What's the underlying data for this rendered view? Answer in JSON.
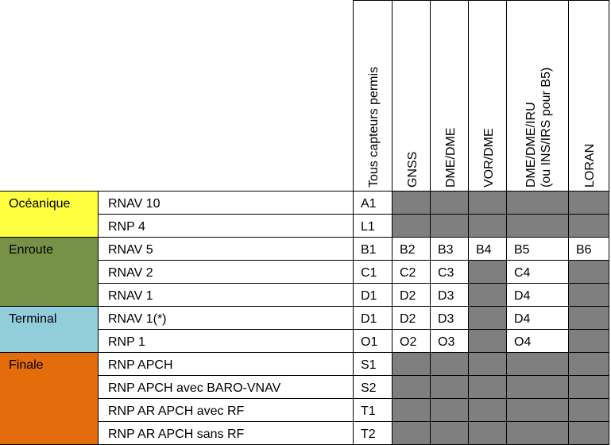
{
  "table": {
    "sensor_headers": [
      {
        "lines": [
          "Tous capteurs permis"
        ]
      },
      {
        "lines": [
          "GNSS"
        ]
      },
      {
        "lines": [
          "DME/DME"
        ]
      },
      {
        "lines": [
          "VOR/DME"
        ]
      },
      {
        "lines": [
          "DME/DME/IRU",
          "(ou INS/IRS pour B5)"
        ]
      },
      {
        "lines": [
          "LORAN"
        ]
      }
    ],
    "phases": [
      {
        "name": "Océanique",
        "color": "#ffff3f",
        "rows": [
          0,
          1
        ]
      },
      {
        "name": "Enroute",
        "color": "#769148",
        "rows": [
          2,
          3,
          4
        ]
      },
      {
        "name": "Terminal",
        "color": "#92cddc",
        "rows": [
          5,
          6
        ]
      },
      {
        "name": "Finale",
        "color": "#e46c0a",
        "rows": [
          7,
          8,
          9,
          10
        ]
      }
    ],
    "rows": [
      {
        "spec": "RNAV 10",
        "cells": [
          "A1",
          null,
          null,
          null,
          null,
          null
        ]
      },
      {
        "spec": "RNP 4",
        "cells": [
          "L1",
          null,
          null,
          null,
          null,
          null
        ]
      },
      {
        "spec": "RNAV 5",
        "cells": [
          "B1",
          "B2",
          "B3",
          "B4",
          "B5",
          "B6"
        ]
      },
      {
        "spec": "RNAV 2",
        "cells": [
          "C1",
          "C2",
          "C3",
          null,
          "C4",
          null
        ]
      },
      {
        "spec": "RNAV 1",
        "cells": [
          "D1",
          "D2",
          "D3",
          null,
          "D4",
          null
        ]
      },
      {
        "spec": "RNAV 1(*)",
        "cells": [
          "D1",
          "D2",
          "D3",
          null,
          "D4",
          null
        ]
      },
      {
        "spec": "RNP 1",
        "cells": [
          "O1",
          "O2",
          "O3",
          null,
          "O4",
          null
        ]
      },
      {
        "spec": "RNP APCH",
        "cells": [
          "S1",
          null,
          null,
          null,
          null,
          null
        ]
      },
      {
        "spec": "RNP APCH avec BARO-VNAV",
        "cells": [
          "S2",
          null,
          null,
          null,
          null,
          null
        ]
      },
      {
        "spec": "RNP AR APCH avec RF",
        "cells": [
          "T1",
          null,
          null,
          null,
          null,
          null
        ]
      },
      {
        "spec": "RNP AR APCH sans RF",
        "cells": [
          "T2",
          null,
          null,
          null,
          null,
          null
        ]
      }
    ],
    "shade_color": "#7f7f7f"
  }
}
